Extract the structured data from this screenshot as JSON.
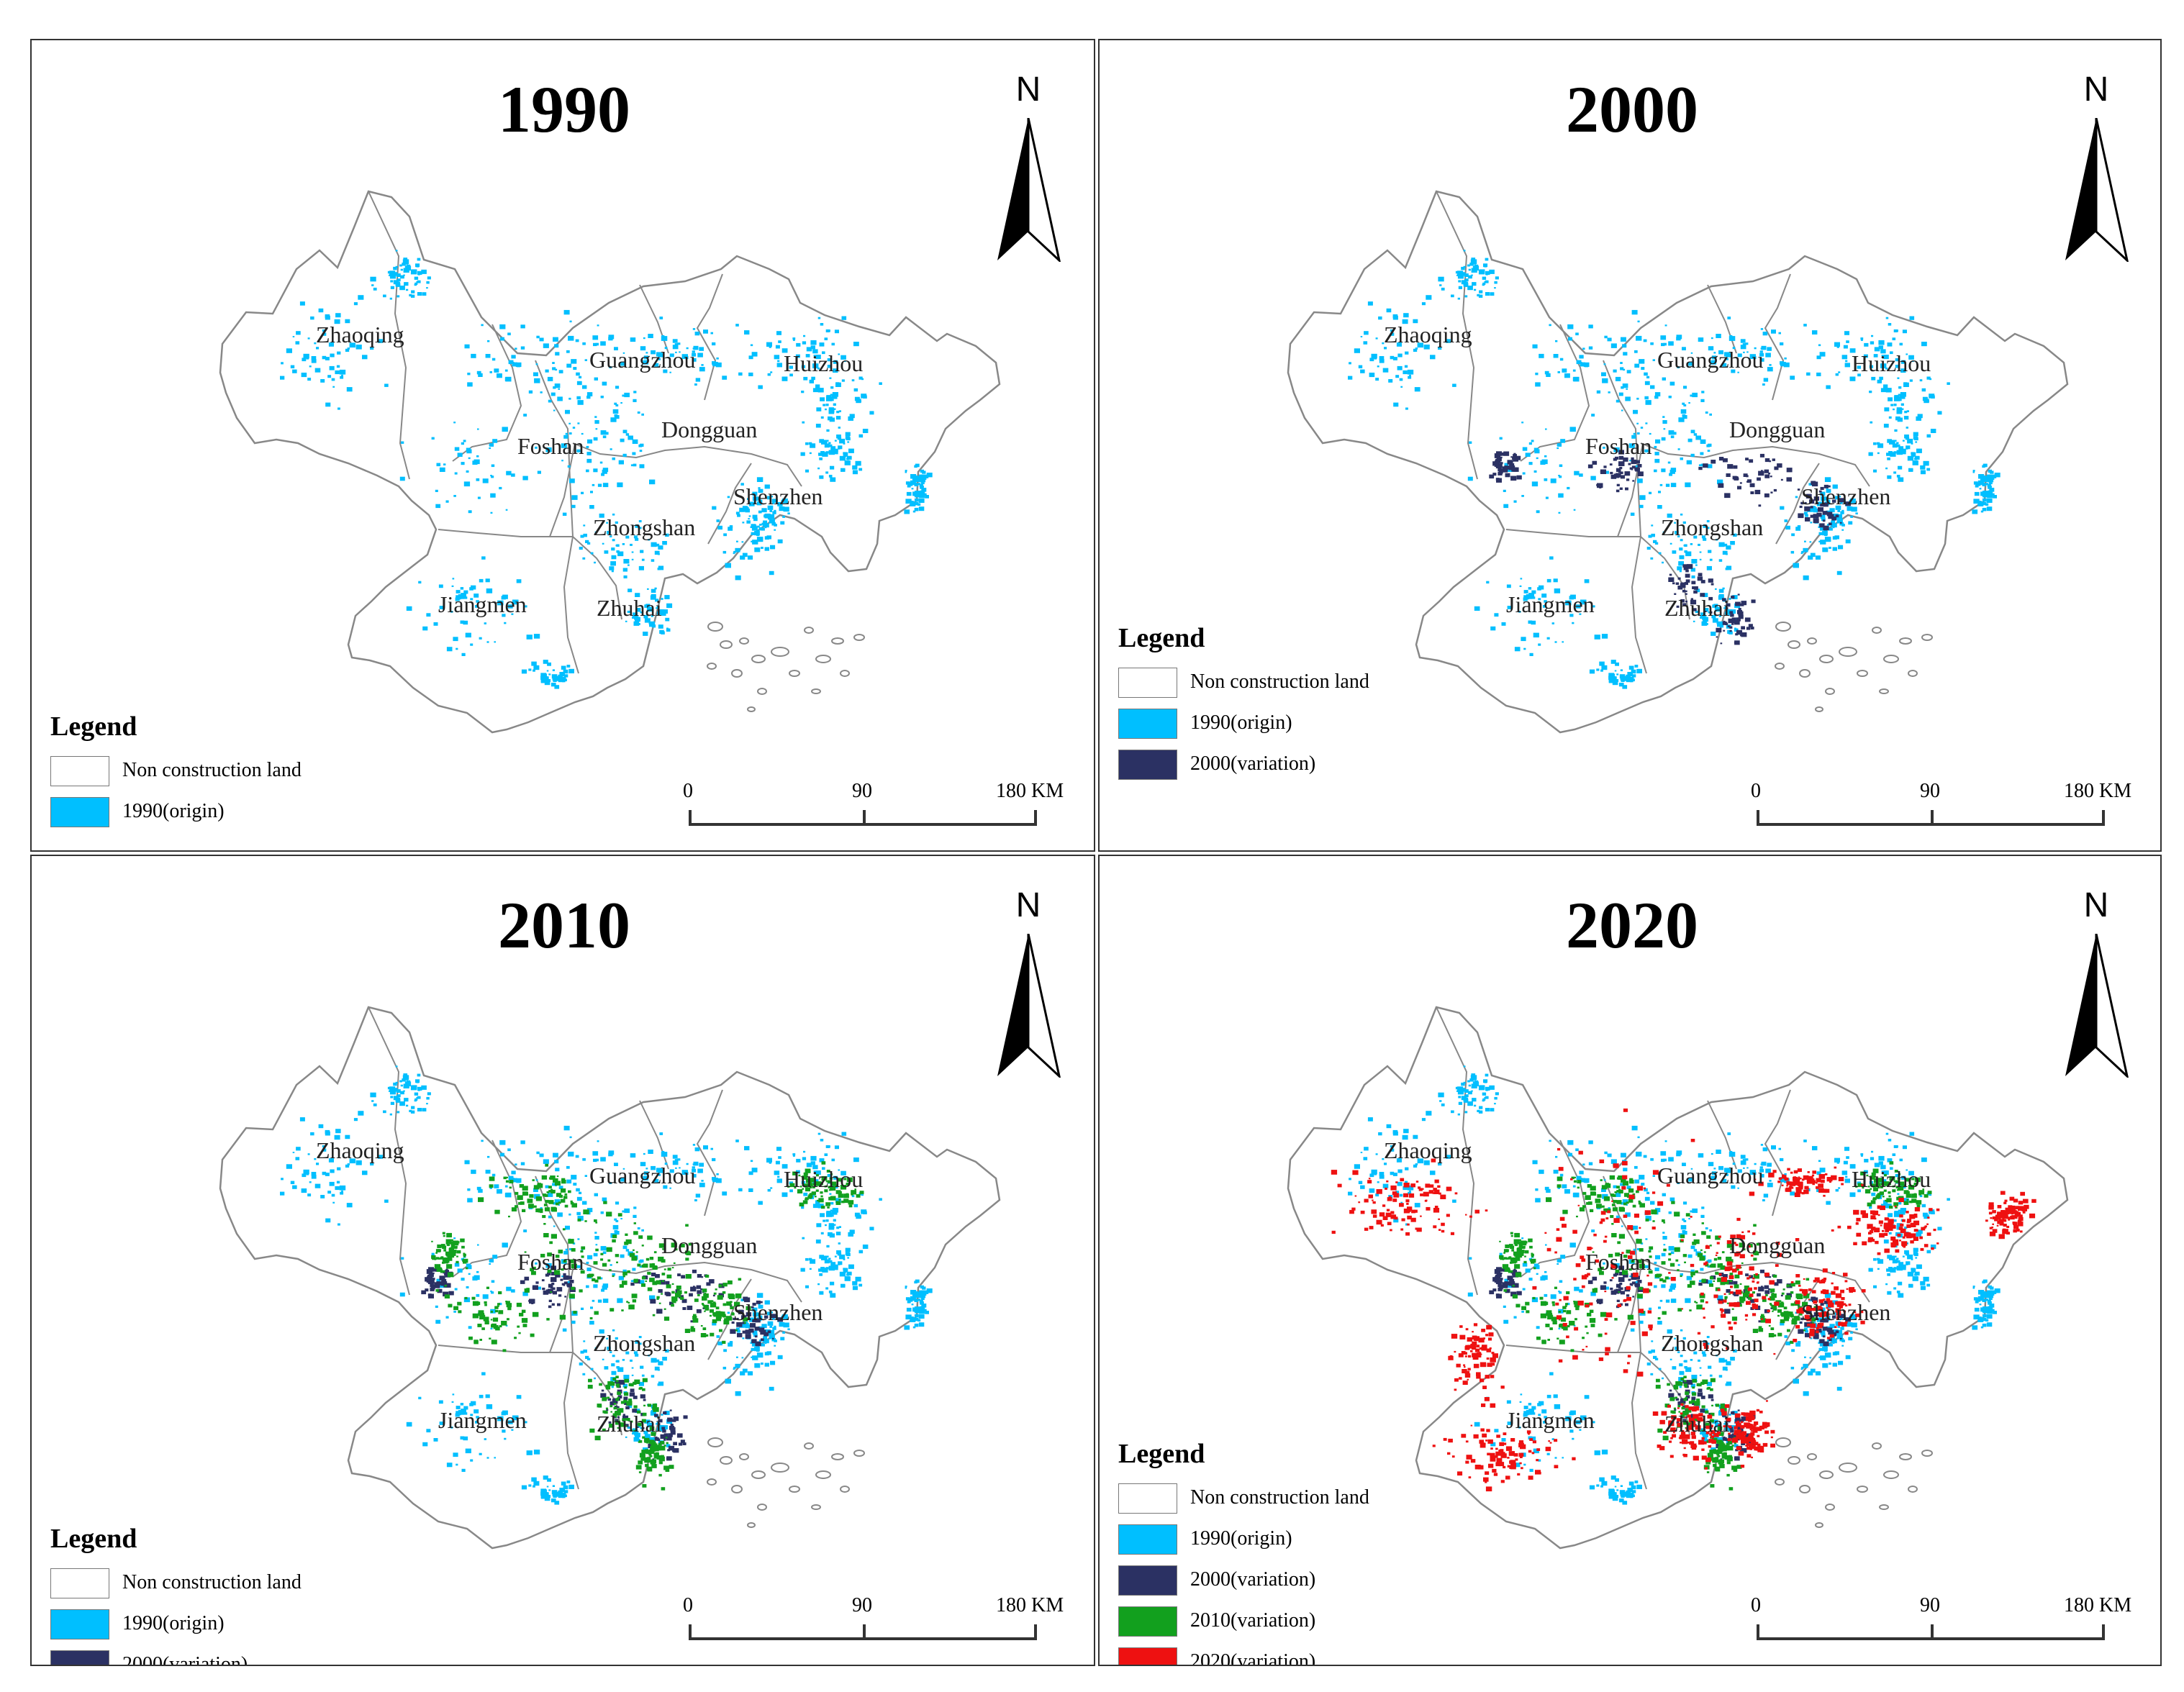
{
  "colors": {
    "non_construction": "#ffffff",
    "origin_1990": "#00bfff",
    "variation_2000": "#2b3163",
    "variation_2010": "#12a01e",
    "variation_2020": "#ee1111",
    "boundary": "#888888"
  },
  "north_label": "N",
  "scalebar": {
    "start": "0",
    "mid": "90",
    "end": "180 KM"
  },
  "legend_title": "Legend",
  "cities": [
    "Zhaoqing",
    "Guangzhou",
    "Huizhou",
    "Foshan",
    "Dongguan",
    "Shenzhen",
    "Zhongshan",
    "Jiangmen",
    "Zhuhai"
  ],
  "legend_items": {
    "non_construction": "Non construction land",
    "origin_1990": "1990(origin)",
    "variation_2000": "2000(variation)",
    "variation_2010": "2010(variation)",
    "variation_2020": "2020(variation)"
  },
  "panels": [
    {
      "title": "1990",
      "layers": [
        "origin_1990"
      ]
    },
    {
      "title": "2000",
      "layers": [
        "origin_1990",
        "variation_2000"
      ]
    },
    {
      "title": "2010",
      "layers": [
        "origin_1990",
        "variation_2000",
        "variation_2010"
      ]
    },
    {
      "title": "2020",
      "layers": [
        "origin_1990",
        "variation_2000",
        "variation_2010",
        "variation_2020"
      ]
    }
  ]
}
